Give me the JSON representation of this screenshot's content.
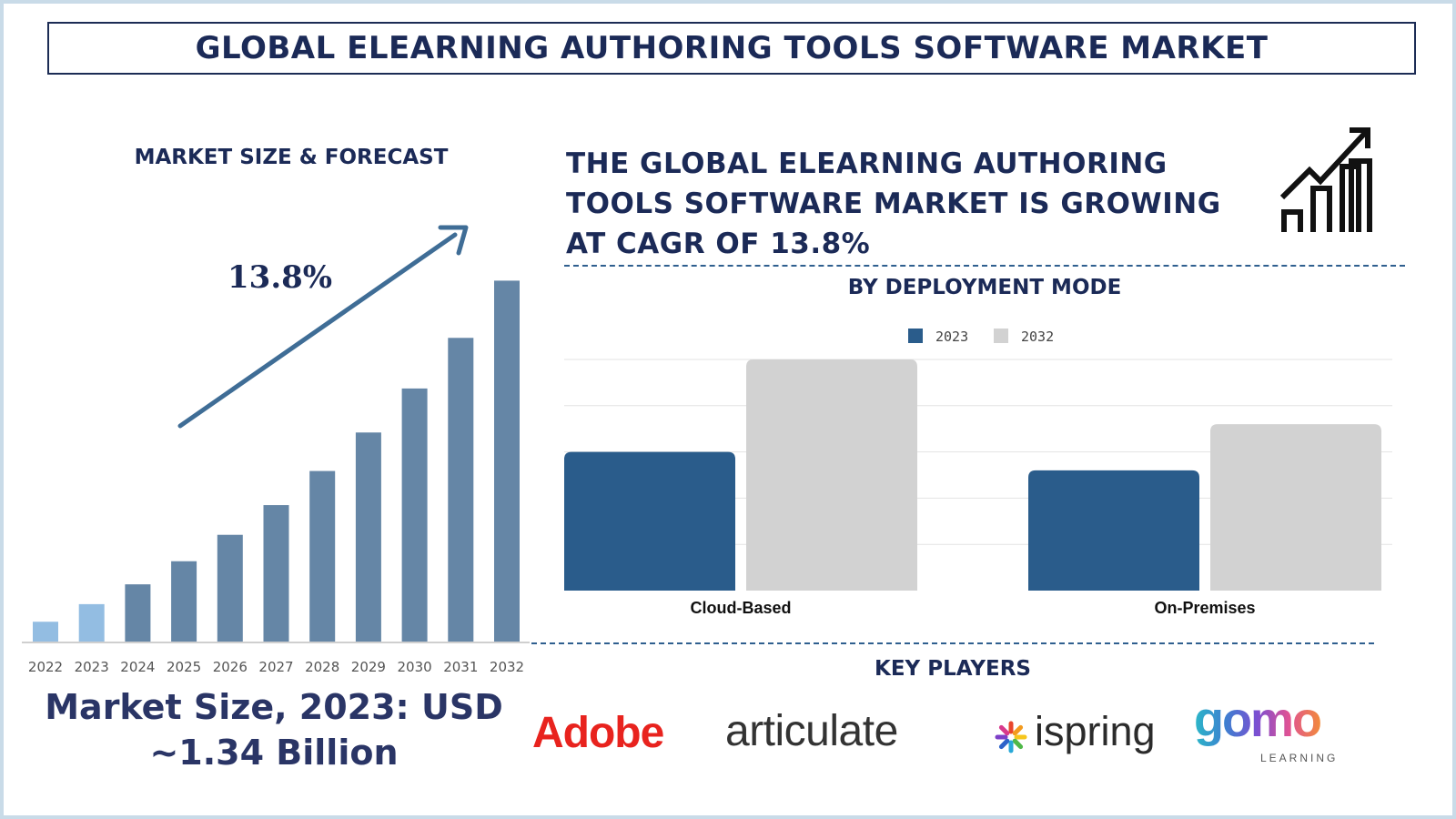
{
  "title": "GLOBAL ELEARNING AUTHORING TOOLS SOFTWARE MARKET",
  "left_panel": {
    "heading": "MARKET SIZE & FORECAST",
    "market_size_line1": "Market Size, 2023: USD",
    "market_size_line2": "~1.34 Billion"
  },
  "headline": {
    "line1": "THE GLOBAL ELEARNING AUTHORING",
    "line2": "TOOLS SOFTWARE MARKET IS GROWING",
    "line3": "AT CAGR OF 13.8%"
  },
  "icons": {
    "growth": "chart-growth-arrow-icon",
    "ispring": "ispring-star-icon"
  },
  "right_panel": {
    "heading": "BY DEPLOYMENT MODE"
  },
  "key_players": {
    "heading": "KEY PLAYERS",
    "logos": [
      "Adobe",
      "articulate",
      "ispring",
      "gomo",
      "LEARNING"
    ]
  },
  "colors": {
    "navy": "#1b2a57",
    "bar_forecast": "#6586a6",
    "bar_highlight": "#93bde2",
    "series_2023": "#2a5c8b",
    "series_2032": "#d2d2d2",
    "arrow": "#3f6d96"
  },
  "chart_data": [
    {
      "type": "bar",
      "title": "MARKET SIZE & FORECAST",
      "categories": [
        "2022",
        "2023",
        "2024",
        "2025",
        "2026",
        "2027",
        "2028",
        "2029",
        "2030",
        "2031",
        "2032"
      ],
      "values": [
        1.18,
        1.34,
        1.52,
        1.73,
        1.97,
        2.24,
        2.55,
        2.9,
        3.3,
        3.76,
        4.28
      ],
      "annotation": "13.8%",
      "highlight": [
        "2022",
        "2023"
      ],
      "ylim": [
        1.0,
        4.3
      ],
      "grid": false
    },
    {
      "type": "bar",
      "title": "BY DEPLOYMENT MODE",
      "categories": [
        "Cloud-Based",
        "On-Premises"
      ],
      "series": [
        {
          "name": "2023",
          "values": [
            3.0,
            2.6
          ]
        },
        {
          "name": "2032",
          "values": [
            5.0,
            3.6
          ]
        }
      ],
      "ylim": [
        0,
        5
      ],
      "grid": true,
      "legend": "top-center"
    }
  ]
}
